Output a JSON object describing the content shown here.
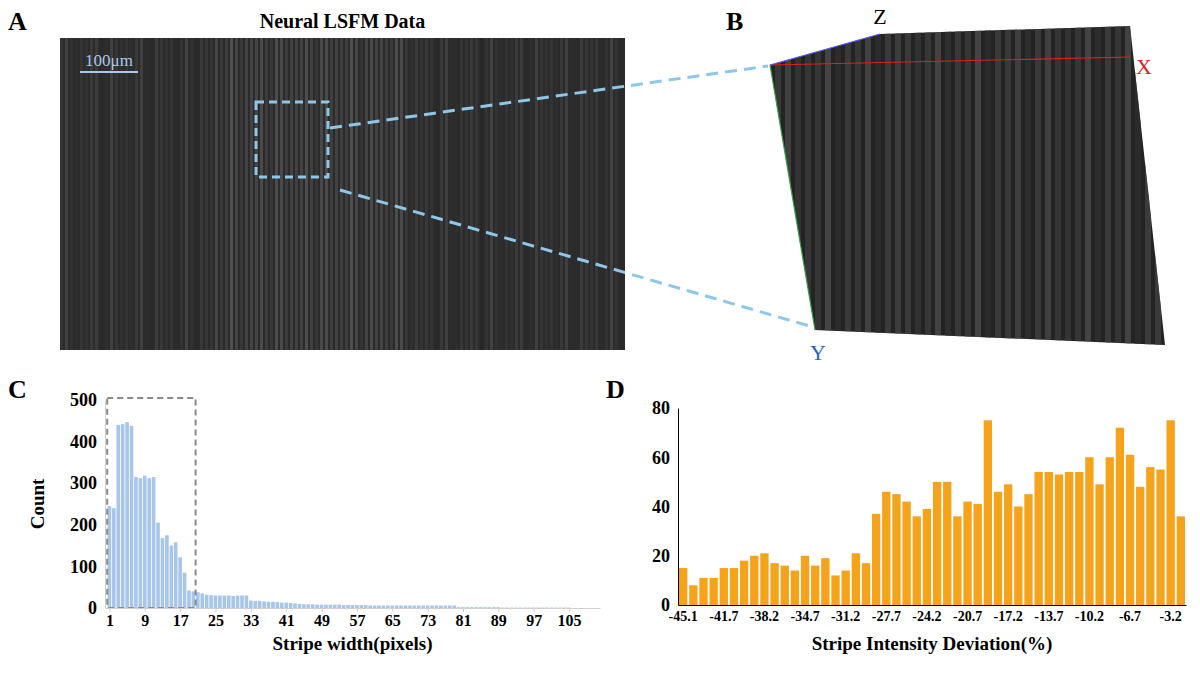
{
  "figure": {
    "panel_labels": [
      "A",
      "B",
      "C",
      "D"
    ],
    "panel_a": {
      "title": "Neural LSFM Data",
      "scale_bar": "100μm"
    },
    "panel_b": {
      "axis_labels": {
        "z": "Z",
        "x": "X",
        "y": "Y"
      }
    }
  },
  "chart_data": [
    {
      "type": "histogram",
      "color": "#a8c6ea",
      "x_label": "Stripe width(pixels)",
      "y_label": "Count",
      "bins": [
        0.5,
        1.5,
        2.5,
        3.5,
        4.5,
        5.5,
        6.5,
        7.5,
        8.5,
        9.5,
        10.5,
        11.5,
        12.5,
        13.5,
        14.5,
        15.5,
        16.5,
        17.5,
        18.5,
        19.5,
        20.5,
        21.5,
        22.5,
        23.5,
        24.5,
        25.5,
        26.5,
        27.5,
        28.5,
        29.5,
        30.5,
        31.5,
        32.5,
        33.5,
        34.5,
        35.5,
        36.5,
        37.5,
        38.5,
        39.5,
        40.5,
        41.5,
        42.5,
        43.5,
        44.5,
        45.5,
        46.5,
        47.5,
        48.5,
        49.5,
        50.5,
        51.5,
        52.5,
        53.5,
        54.5,
        55.5,
        56.5,
        57.5,
        58.5,
        59.5,
        60.5,
        61.5,
        62.5,
        63.5,
        64.5,
        65.5,
        66.5,
        67.5,
        68.5,
        69.5,
        70.5,
        71.5,
        72.5,
        73.5,
        74.5,
        75.5,
        76.5,
        77.5,
        78.5,
        79.5,
        80.5,
        81.5,
        82.5,
        83.5,
        84.5,
        85.5,
        86.5,
        87.5,
        88.5,
        89.5,
        90.5,
        91.5,
        92.5,
        93.5,
        94.5,
        95.5,
        96.5,
        97.5,
        98.5,
        99.5,
        100.5,
        101.5,
        102.5,
        103.5,
        104.5,
        105.5,
        106.5,
        107.5
      ],
      "values": [
        245,
        240,
        440,
        442,
        447,
        438,
        315,
        312,
        318,
        312,
        315,
        205,
        168,
        175,
        150,
        158,
        122,
        85,
        42,
        40,
        38,
        35,
        32,
        31,
        30,
        30,
        30,
        30,
        29,
        30,
        30,
        30,
        18,
        17,
        17,
        16,
        15,
        15,
        14,
        13,
        13,
        12,
        11,
        10,
        9,
        9,
        9,
        8,
        8,
        8,
        8,
        8,
        8,
        7,
        7,
        7,
        7,
        7,
        7,
        6,
        6,
        6,
        6,
        6,
        6,
        6,
        6,
        6,
        6,
        6,
        6,
        6,
        6,
        6,
        6,
        6,
        6,
        6,
        6,
        2,
        2,
        2,
        2,
        2,
        2,
        2,
        2,
        2,
        2,
        1,
        1,
        1,
        1,
        1,
        1,
        1,
        1,
        1,
        1,
        1,
        1,
        1,
        1,
        1,
        1,
        0,
        0
      ],
      "xlim": [
        0,
        112
      ],
      "xticks": [
        1,
        9,
        17,
        25,
        33,
        41,
        49,
        57,
        65,
        73,
        81,
        89,
        97,
        105
      ],
      "ylim": [
        0,
        500
      ],
      "yticks": [
        0,
        100,
        200,
        300,
        400,
        500
      ],
      "highlight_box": {
        "x": [
          0.5,
          20.5
        ],
        "y": [
          0,
          505
        ]
      }
    },
    {
      "type": "bar",
      "color": "#f5a31a",
      "x_label": "Stripe Intensity Deviation(%)",
      "categories": [
        "-45.1",
        null,
        null,
        null,
        "-41.7",
        null,
        null,
        null,
        "-38.2",
        null,
        null,
        null,
        "-34.7",
        null,
        null,
        null,
        "-31.2",
        null,
        null,
        null,
        "-27.7",
        null,
        null,
        null,
        "-24.2",
        null,
        null,
        null,
        "-20.7",
        null,
        null,
        null,
        "-17.2",
        null,
        null,
        null,
        "-13.7",
        null,
        null,
        null,
        "-10.2",
        null,
        null,
        null,
        "-6.7",
        null,
        null,
        null,
        "-3.2",
        null
      ],
      "values": [
        15,
        8,
        11,
        11,
        15,
        15,
        18,
        20,
        21,
        17,
        16,
        14,
        20,
        16,
        19,
        12,
        14,
        21,
        17,
        37,
        46,
        45,
        42,
        36,
        39,
        50,
        50,
        36,
        42,
        41,
        75,
        46,
        49,
        40,
        45,
        54,
        54,
        53,
        54,
        54,
        60,
        49,
        60,
        72,
        61,
        48,
        56,
        55,
        75,
        36
      ],
      "ylim": [
        0,
        80
      ],
      "yticks": [
        0,
        20,
        40,
        60,
        80
      ]
    }
  ]
}
